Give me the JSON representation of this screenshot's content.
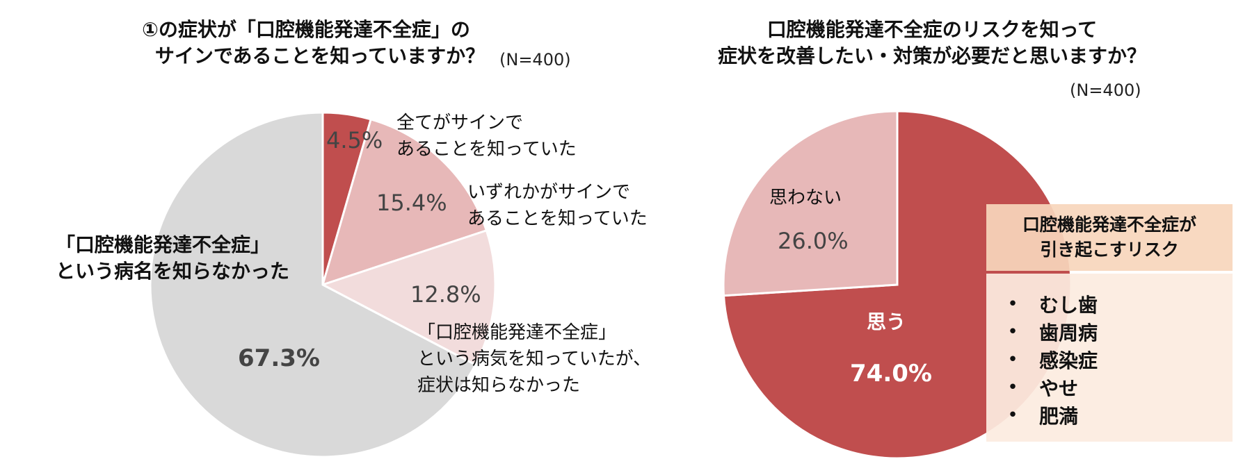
{
  "chart_data": [
    {
      "type": "pie",
      "title_lines": [
        "①の症状が「口腔機能発達不全症」の",
        "サインであることを知っていますか？"
      ],
      "n_label": "(N=400)",
      "slices": [
        {
          "label_lines": [
            "全てがサインで",
            "あることを知っていた"
          ],
          "value": 4.5,
          "value_label": "4.5%",
          "color": "#c04e4e"
        },
        {
          "label_lines": [
            "いずれかがサインで",
            "あることを知っていた"
          ],
          "value": 15.4,
          "value_label": "15.4%",
          "color": "#e7b8b8"
        },
        {
          "label_lines": [
            "「口腔機能発達不全症」",
            "という病気を知っていたが、",
            "症状は知らなかった"
          ],
          "value": 12.8,
          "value_label": "12.8%",
          "color": "#f2dcdc"
        },
        {
          "label_lines": [
            "「口腔機能発達不全症」",
            "という病名を知らなかった"
          ],
          "value": 67.3,
          "value_label": "67.3%",
          "color": "#d9d9d9"
        }
      ]
    },
    {
      "type": "pie",
      "title_lines": [
        "口腔機能発達不全症のリスクを知って",
        "症状を改善したい・対策が必要だと思いますか？"
      ],
      "n_label": "(N=400)",
      "slices": [
        {
          "label_lines": [
            "思う"
          ],
          "value": 74.0,
          "value_label": "74.0%",
          "color": "#c04e4e"
        },
        {
          "label_lines": [
            "思わない"
          ],
          "value": 26.0,
          "value_label": "26.0%",
          "color": "#e7b8b8"
        }
      ]
    }
  ],
  "risk_box": {
    "title_lines": [
      "口腔機能発達不全症が",
      "引き起こすリスク"
    ],
    "items": [
      "むし歯",
      "歯周病",
      "感染症",
      "やせ",
      "肥満"
    ],
    "bullet": "•"
  }
}
